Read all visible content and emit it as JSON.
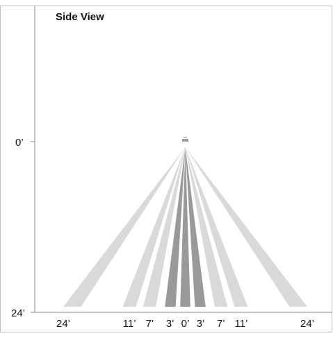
{
  "title": "Side View",
  "y_axis": {
    "ticks": [
      {
        "label": "0’",
        "value": 0
      },
      {
        "label": "24’",
        "value": 24
      }
    ]
  },
  "x_axis": {
    "ticks": [
      {
        "label": "24’",
        "value": -24
      },
      {
        "label": "11’",
        "value": -11
      },
      {
        "label": "7’",
        "value": -7
      },
      {
        "label": "3’",
        "value": -3
      },
      {
        "label": "0’",
        "value": 0
      },
      {
        "label": "3’",
        "value": 3
      },
      {
        "label": "7’",
        "value": 7
      },
      {
        "label": "11’",
        "value": 11
      },
      {
        "label": "24’",
        "value": 24
      }
    ]
  },
  "beams": [
    {
      "from": -24,
      "to": -20.5,
      "shade": "light"
    },
    {
      "from": -12.3,
      "to": -9.7,
      "shade": "light"
    },
    {
      "from": -8.3,
      "to": -5.8,
      "shade": "light"
    },
    {
      "from": -4.0,
      "to": -1.9,
      "shade": "dark"
    },
    {
      "from": -1.0,
      "to": 1.0,
      "shade": "dark"
    },
    {
      "from": 1.9,
      "to": 4.0,
      "shade": "dark"
    },
    {
      "from": 5.8,
      "to": 8.3,
      "shade": "light"
    },
    {
      "from": 9.7,
      "to": 12.3,
      "shade": "light"
    },
    {
      "from": 20.5,
      "to": 24,
      "shade": "light"
    }
  ],
  "colors": {
    "light": "#d9d9d9",
    "dark": "#999999",
    "axis": "#888888",
    "frame": "#bbbbbb",
    "sensor": "#9a9a9a"
  }
}
